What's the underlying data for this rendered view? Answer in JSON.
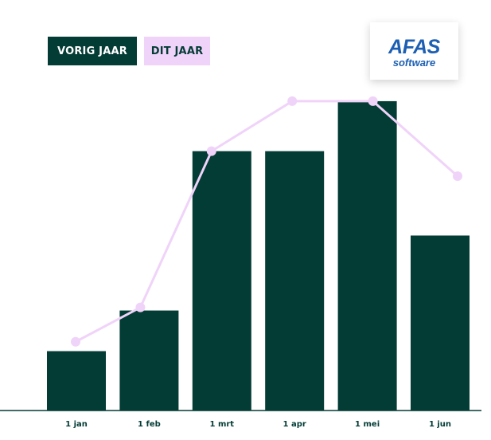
{
  "legend": {
    "previous_year": "VORIG JAAR",
    "this_year": "DIT JAAR"
  },
  "logo": {
    "brand": "AFAS",
    "tagline": "software"
  },
  "colors": {
    "bar": "#033b35",
    "line": "#f0d3f9",
    "logo": "#1c5fb3"
  },
  "chart_data": {
    "type": "bar",
    "title": "",
    "xlabel": "",
    "ylabel": "",
    "categories": [
      "1 jan",
      "1 feb",
      "1 mrt",
      "1 apr",
      "1 mei",
      "1 jun"
    ],
    "ylim": [
      0,
      100
    ],
    "series": [
      {
        "name": "VORIG JAAR",
        "kind": "bar",
        "values": [
          19,
          32,
          83,
          83,
          99,
          56
        ]
      },
      {
        "name": "DIT JAAR",
        "kind": "line",
        "values": [
          22,
          33,
          83,
          99,
          99,
          75
        ]
      }
    ],
    "grid": false,
    "legend_position": "top-left"
  }
}
